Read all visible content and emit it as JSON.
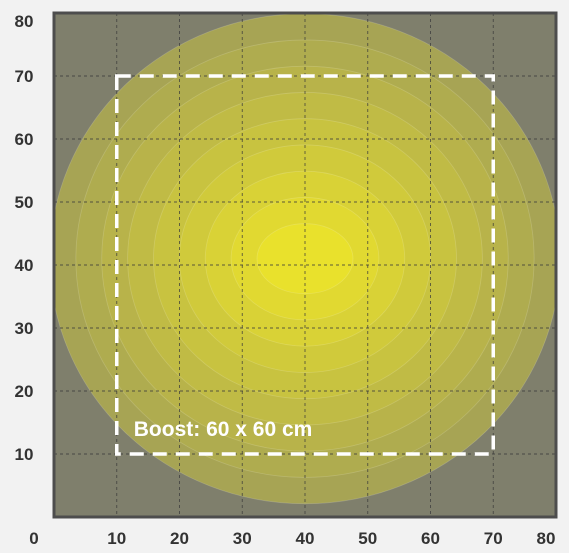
{
  "chart_data": {
    "type": "heatmap",
    "title": "",
    "xlabel": "",
    "ylabel": "",
    "xlim": [
      0,
      80
    ],
    "ylim": [
      0,
      80
    ],
    "x_ticks": [
      "0",
      "10",
      "20",
      "30",
      "40",
      "50",
      "60",
      "70",
      "80"
    ],
    "y_ticks": [
      "10",
      "20",
      "30",
      "40",
      "50",
      "60",
      "70",
      "80"
    ],
    "grid": true,
    "peak": {
      "x": 40,
      "y": 41
    },
    "contour_levels": 8,
    "colors": {
      "edge": "#7f7f6c",
      "peak": "#e9e12c",
      "frame": "#4d4d4d",
      "grid": "#3a3a3a",
      "annotation": "#ffffff",
      "tick_label": "#333333"
    },
    "annotation": {
      "label": "Boost: 60 x 60 cm",
      "rect_x": [
        10,
        70
      ],
      "rect_y": [
        10,
        70
      ]
    }
  }
}
